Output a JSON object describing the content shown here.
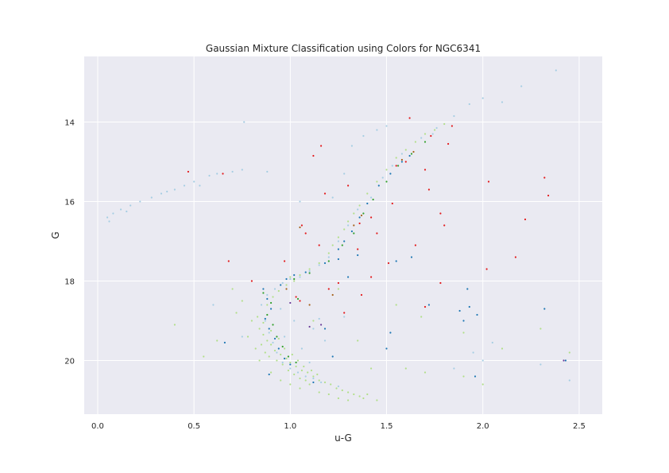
{
  "chart_data": {
    "type": "scatter",
    "title": "Gaussian Mixture Classification using Colors for NGC6341",
    "xlabel": "u-G",
    "ylabel": "G",
    "xlim": [
      -0.07,
      2.62
    ],
    "ylim": [
      21.35,
      12.35
    ],
    "y_inverted": true,
    "x_ticks": [
      "0.0",
      "0.5",
      "1.0",
      "1.5",
      "2.0",
      "2.5"
    ],
    "y_ticks": [
      "14",
      "16",
      "18",
      "20"
    ],
    "grid": true,
    "background": "#eaeaf2",
    "series": [
      {
        "color": "#b2df8a",
        "points": [
          [
            0.84,
            19.2
          ],
          [
            0.86,
            19.35
          ],
          [
            0.88,
            19.5
          ],
          [
            0.9,
            19.6
          ],
          [
            0.92,
            19.75
          ],
          [
            0.95,
            19.85
          ],
          [
            0.98,
            19.95
          ],
          [
            1.0,
            20.05
          ],
          [
            1.03,
            20.15
          ],
          [
            1.06,
            20.25
          ],
          [
            1.09,
            20.3
          ],
          [
            1.12,
            20.4
          ],
          [
            1.15,
            20.5
          ],
          [
            1.18,
            20.55
          ],
          [
            1.21,
            20.6
          ],
          [
            1.24,
            20.7
          ],
          [
            1.27,
            20.75
          ],
          [
            1.3,
            20.8
          ],
          [
            1.33,
            20.85
          ],
          [
            1.36,
            20.9
          ],
          [
            0.85,
            19.6
          ],
          [
            0.87,
            19.8
          ],
          [
            0.89,
            19.9
          ],
          [
            0.93,
            20.0
          ],
          [
            0.96,
            20.1
          ],
          [
            0.99,
            20.25
          ],
          [
            1.02,
            20.35
          ],
          [
            1.05,
            20.45
          ],
          [
            1.08,
            20.5
          ],
          [
            1.1,
            20.6
          ],
          [
            0.83,
            18.9
          ],
          [
            0.86,
            19.05
          ],
          [
            0.9,
            19.25
          ],
          [
            0.94,
            19.45
          ],
          [
            0.97,
            19.7
          ],
          [
            1.01,
            19.85
          ],
          [
            1.04,
            20.0
          ],
          [
            1.07,
            20.15
          ],
          [
            1.11,
            20.25
          ],
          [
            1.14,
            20.35
          ],
          [
            0.88,
            18.6
          ],
          [
            0.91,
            18.4
          ],
          [
            0.94,
            18.25
          ],
          [
            0.98,
            18.1
          ],
          [
            1.02,
            18.0
          ],
          [
            0.8,
            19.0
          ],
          [
            0.78,
            19.4
          ],
          [
            0.82,
            19.7
          ],
          [
            0.84,
            20.0
          ],
          [
            0.9,
            20.3
          ],
          [
            0.95,
            20.5
          ],
          [
            1.0,
            20.6
          ],
          [
            1.05,
            20.7
          ],
          [
            1.15,
            20.8
          ],
          [
            1.2,
            20.85
          ],
          [
            1.25,
            20.95
          ],
          [
            1.3,
            21.0
          ],
          [
            1.38,
            20.95
          ],
          [
            1.4,
            20.85
          ],
          [
            1.45,
            21.0
          ],
          [
            1.22,
            17.1
          ],
          [
            1.25,
            16.9
          ],
          [
            1.28,
            16.7
          ],
          [
            1.3,
            16.5
          ],
          [
            1.33,
            16.3
          ],
          [
            1.36,
            16.1
          ],
          [
            1.4,
            15.8
          ],
          [
            1.45,
            15.5
          ],
          [
            1.5,
            15.2
          ],
          [
            1.55,
            14.9
          ],
          [
            1.6,
            14.7
          ],
          [
            1.65,
            14.5
          ],
          [
            1.7,
            14.3
          ],
          [
            1.75,
            14.2
          ],
          [
            1.8,
            14.05
          ],
          [
            1.2,
            17.3
          ],
          [
            1.15,
            17.55
          ],
          [
            1.1,
            17.7
          ],
          [
            1.05,
            17.85
          ],
          [
            1.0,
            17.9
          ],
          [
            0.7,
            18.2
          ],
          [
            0.75,
            18.5
          ],
          [
            0.72,
            18.8
          ],
          [
            1.6,
            20.2
          ],
          [
            1.7,
            20.3
          ],
          [
            1.9,
            20.4
          ],
          [
            2.0,
            20.6
          ],
          [
            0.62,
            19.5
          ],
          [
            0.55,
            19.9
          ],
          [
            0.4,
            19.1
          ],
          [
            1.9,
            19.3
          ],
          [
            2.1,
            19.7
          ],
          [
            2.3,
            19.2
          ],
          [
            2.45,
            19.8
          ],
          [
            1.55,
            18.6
          ],
          [
            1.68,
            18.9
          ],
          [
            1.25,
            18.2
          ],
          [
            1.12,
            19.0
          ],
          [
            1.35,
            19.5
          ],
          [
            1.42,
            20.2
          ]
        ]
      },
      {
        "color": "#a6cee3",
        "points": [
          [
            0.05,
            16.4
          ],
          [
            0.08,
            16.3
          ],
          [
            0.12,
            16.2
          ],
          [
            0.17,
            16.1
          ],
          [
            0.22,
            16.0
          ],
          [
            0.28,
            15.9
          ],
          [
            0.33,
            15.8
          ],
          [
            0.4,
            15.7
          ],
          [
            0.45,
            15.6
          ],
          [
            0.5,
            15.5
          ],
          [
            0.58,
            15.35
          ],
          [
            0.62,
            15.3
          ],
          [
            0.7,
            15.25
          ],
          [
            0.75,
            15.2
          ],
          [
            0.53,
            15.6
          ],
          [
            0.36,
            15.75
          ],
          [
            0.15,
            16.25
          ],
          [
            0.06,
            16.5
          ],
          [
            0.76,
            14.0
          ],
          [
            0.88,
            15.25
          ],
          [
            0.87,
            19.0
          ],
          [
            0.89,
            19.3
          ],
          [
            0.91,
            19.55
          ],
          [
            0.93,
            19.8
          ],
          [
            0.96,
            20.05
          ],
          [
            1.0,
            20.2
          ],
          [
            1.04,
            20.3
          ],
          [
            1.08,
            20.4
          ],
          [
            1.12,
            20.45
          ],
          [
            1.16,
            20.55
          ],
          [
            0.85,
            18.6
          ],
          [
            0.88,
            18.35
          ],
          [
            0.92,
            18.2
          ],
          [
            0.96,
            18.05
          ],
          [
            1.0,
            17.95
          ],
          [
            1.05,
            17.9
          ],
          [
            1.1,
            17.75
          ],
          [
            1.15,
            17.6
          ],
          [
            1.2,
            17.4
          ],
          [
            1.25,
            17.0
          ],
          [
            1.3,
            16.6
          ],
          [
            1.35,
            16.2
          ],
          [
            1.42,
            15.9
          ],
          [
            1.48,
            15.4
          ],
          [
            1.53,
            15.1
          ],
          [
            1.58,
            14.8
          ],
          [
            1.68,
            14.4
          ],
          [
            1.76,
            14.15
          ],
          [
            1.85,
            13.85
          ],
          [
            1.93,
            13.55
          ],
          [
            2.0,
            13.4
          ],
          [
            2.2,
            13.1
          ],
          [
            2.38,
            12.7
          ],
          [
            1.38,
            14.35
          ],
          [
            1.45,
            14.2
          ],
          [
            1.5,
            14.1
          ],
          [
            1.32,
            14.6
          ],
          [
            1.28,
            15.3
          ],
          [
            1.22,
            15.9
          ],
          [
            1.05,
            16.0
          ],
          [
            1.95,
            19.8
          ],
          [
            2.05,
            19.55
          ],
          [
            2.0,
            20.0
          ],
          [
            1.85,
            20.2
          ],
          [
            1.12,
            19.2
          ],
          [
            1.18,
            19.5
          ],
          [
            2.3,
            20.1
          ],
          [
            2.45,
            20.5
          ],
          [
            0.75,
            19.4
          ],
          [
            0.6,
            18.6
          ],
          [
            0.95,
            18.7
          ],
          [
            1.02,
            19.0
          ],
          [
            0.97,
            19.4
          ],
          [
            1.06,
            19.7
          ],
          [
            1.1,
            20.05
          ],
          [
            1.25,
            20.65
          ],
          [
            1.28,
            18.9
          ],
          [
            1.15,
            18.95
          ],
          [
            1.74,
            14.3
          ],
          [
            2.1,
            13.5
          ]
        ]
      },
      {
        "color": "#1f78b4",
        "points": [
          [
            0.86,
            18.2
          ],
          [
            0.88,
            18.45
          ],
          [
            0.9,
            18.7
          ],
          [
            0.87,
            18.95
          ],
          [
            0.89,
            19.2
          ],
          [
            0.92,
            19.45
          ],
          [
            0.94,
            19.7
          ],
          [
            0.97,
            19.95
          ],
          [
            1.0,
            20.1
          ],
          [
            0.95,
            18.1
          ],
          [
            0.98,
            17.95
          ],
          [
            1.02,
            17.85
          ],
          [
            1.08,
            17.78
          ],
          [
            1.18,
            17.55
          ],
          [
            1.25,
            17.2
          ],
          [
            1.28,
            17.0
          ],
          [
            1.32,
            16.75
          ],
          [
            1.36,
            16.4
          ],
          [
            1.4,
            16.05
          ],
          [
            1.46,
            15.6
          ],
          [
            1.52,
            15.3
          ],
          [
            1.58,
            15.0
          ],
          [
            1.62,
            14.85
          ],
          [
            1.25,
            17.45
          ],
          [
            1.35,
            17.35
          ],
          [
            1.18,
            19.2
          ],
          [
            1.22,
            19.9
          ],
          [
            1.52,
            19.3
          ],
          [
            1.5,
            19.7
          ],
          [
            1.55,
            17.5
          ],
          [
            1.63,
            17.4
          ],
          [
            1.72,
            18.6
          ],
          [
            1.88,
            18.75
          ],
          [
            1.9,
            19.0
          ],
          [
            1.93,
            18.65
          ],
          [
            1.97,
            18.85
          ],
          [
            1.92,
            18.2
          ],
          [
            1.96,
            20.4
          ],
          [
            2.32,
            18.7
          ],
          [
            2.43,
            20.0
          ],
          [
            0.66,
            19.55
          ],
          [
            0.89,
            20.35
          ],
          [
            1.12,
            20.55
          ],
          [
            1.3,
            17.9
          ]
        ]
      },
      {
        "color": "#33a02c",
        "points": [
          [
            0.86,
            18.3
          ],
          [
            0.9,
            18.55
          ],
          [
            0.88,
            18.85
          ],
          [
            0.91,
            19.1
          ],
          [
            0.93,
            19.4
          ],
          [
            0.96,
            19.65
          ],
          [
            0.99,
            19.9
          ],
          [
            1.03,
            20.05
          ],
          [
            1.02,
            17.95
          ],
          [
            1.1,
            17.8
          ],
          [
            1.2,
            17.5
          ],
          [
            1.27,
            17.1
          ],
          [
            1.33,
            16.8
          ],
          [
            1.38,
            16.3
          ],
          [
            1.43,
            15.95
          ],
          [
            1.5,
            15.5
          ],
          [
            1.56,
            15.1
          ],
          [
            1.63,
            14.8
          ],
          [
            1.7,
            14.5
          ],
          [
            1.04,
            18.45
          ]
        ]
      },
      {
        "color": "#e31a1c",
        "points": [
          [
            0.47,
            15.25
          ],
          [
            0.65,
            15.3
          ],
          [
            0.68,
            17.5
          ],
          [
            0.8,
            18.0
          ],
          [
            0.97,
            17.5
          ],
          [
            1.03,
            18.4
          ],
          [
            1.05,
            18.5
          ],
          [
            1.06,
            16.6
          ],
          [
            1.08,
            16.8
          ],
          [
            1.12,
            14.85
          ],
          [
            1.16,
            14.6
          ],
          [
            1.18,
            15.8
          ],
          [
            1.15,
            17.1
          ],
          [
            1.2,
            18.2
          ],
          [
            1.25,
            18.05
          ],
          [
            1.28,
            18.8
          ],
          [
            1.3,
            15.6
          ],
          [
            1.35,
            17.2
          ],
          [
            1.37,
            18.35
          ],
          [
            1.42,
            17.9
          ],
          [
            1.45,
            16.8
          ],
          [
            1.51,
            17.55
          ],
          [
            1.53,
            16.05
          ],
          [
            1.55,
            15.1
          ],
          [
            1.6,
            15.0
          ],
          [
            1.62,
            13.9
          ],
          [
            1.65,
            17.1
          ],
          [
            1.7,
            15.2
          ],
          [
            1.72,
            15.7
          ],
          [
            1.73,
            14.35
          ],
          [
            1.78,
            16.3
          ],
          [
            1.78,
            18.05
          ],
          [
            1.8,
            16.6
          ],
          [
            1.82,
            14.55
          ],
          [
            1.84,
            14.1
          ],
          [
            2.02,
            17.7
          ],
          [
            2.03,
            15.5
          ],
          [
            2.17,
            17.4
          ],
          [
            2.22,
            16.45
          ],
          [
            2.32,
            15.4
          ],
          [
            2.34,
            15.85
          ],
          [
            1.7,
            18.65
          ],
          [
            1.42,
            16.4
          ],
          [
            1.36,
            16.55
          ]
        ]
      },
      {
        "color": "#a6611a",
        "points": [
          [
            1.05,
            16.65
          ],
          [
            1.22,
            18.35
          ],
          [
            1.33,
            16.6
          ],
          [
            1.37,
            16.35
          ],
          [
            1.58,
            14.95
          ],
          [
            1.64,
            14.75
          ],
          [
            1.1,
            18.6
          ],
          [
            0.98,
            18.2
          ]
        ]
      },
      {
        "color": "#6a3d9a",
        "points": [
          [
            1.1,
            19.15
          ],
          [
            1.16,
            19.1
          ],
          [
            1.0,
            18.55
          ],
          [
            2.42,
            20.0
          ]
        ]
      }
    ]
  }
}
